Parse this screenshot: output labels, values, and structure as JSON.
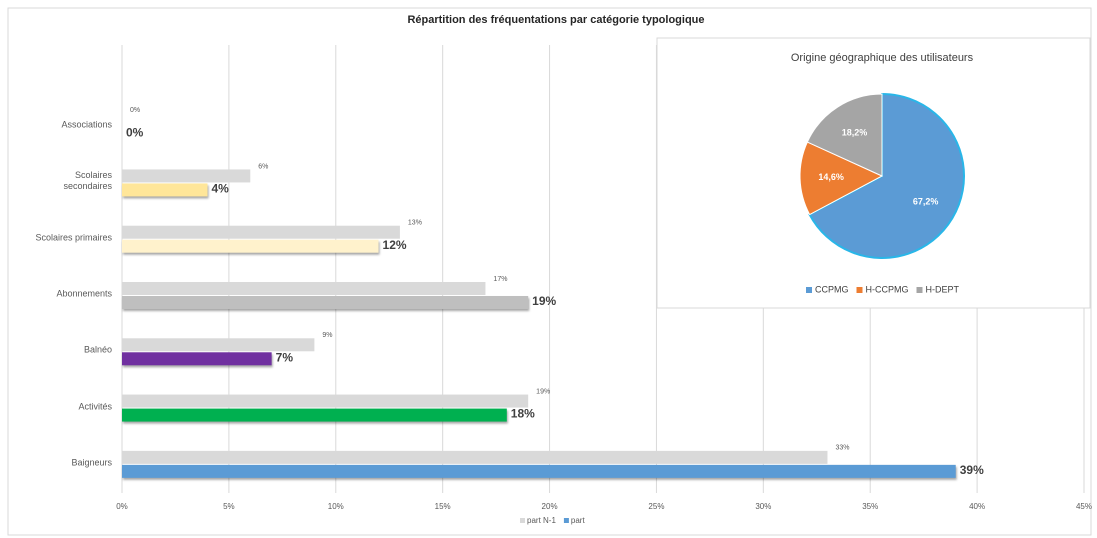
{
  "chart_data": [
    {
      "type": "bar",
      "orientation": "horizontal",
      "title": "Répartition des fréquentations par catégorie typologique",
      "categories": [
        "Associations",
        "Scolaires secondaires",
        "Scolaires primaires",
        "Abonnements",
        "Balnéo",
        "Activités",
        "Baigneurs"
      ],
      "series": [
        {
          "name": "part N-1",
          "color": "#d9d9d9",
          "values": [
            0,
            6,
            13,
            17,
            9,
            19,
            33
          ],
          "value_labels": [
            "0%",
            "6%",
            "13%",
            "17%",
            "9%",
            "19%",
            "33%"
          ]
        },
        {
          "name": "part",
          "color": "#5b9bd5",
          "point_colors": [
            "#5b9bd5",
            "#ffe699",
            "#fff2cc",
            "#bfbfbf",
            "#7030a0",
            "#00b050",
            "#5b9bd5"
          ],
          "values": [
            0,
            4,
            12,
            19,
            7,
            18,
            39
          ],
          "value_labels": [
            "0%",
            "4%",
            "12%",
            "19%",
            "7%",
            "18%",
            "39%"
          ]
        }
      ],
      "xlim": [
        0,
        45
      ],
      "xticks": [
        {
          "value": 0,
          "label": "0%"
        },
        {
          "value": 5,
          "label": "5%"
        },
        {
          "value": 10,
          "label": "10%"
        },
        {
          "value": 15,
          "label": "15%"
        },
        {
          "value": 20,
          "label": "20%"
        },
        {
          "value": 25,
          "label": "25%"
        },
        {
          "value": 30,
          "label": "30%"
        },
        {
          "value": 35,
          "label": "35%"
        },
        {
          "value": 40,
          "label": "40%"
        },
        {
          "value": 45,
          "label": "45%"
        }
      ],
      "grid": true,
      "legend": "bottom"
    },
    {
      "type": "pie",
      "title": "Origine géographique des utilisateurs",
      "categories": [
        "CCPMG",
        "H-CCPMG",
        "H-DEPT"
      ],
      "values": [
        67.2,
        14.6,
        18.2
      ],
      "value_labels": [
        "67,2%",
        "14,6%",
        "18,2%"
      ],
      "colors": [
        "#5b9bd5",
        "#ed7d31",
        "#a5a5a5"
      ],
      "legend": "bottom"
    }
  ]
}
